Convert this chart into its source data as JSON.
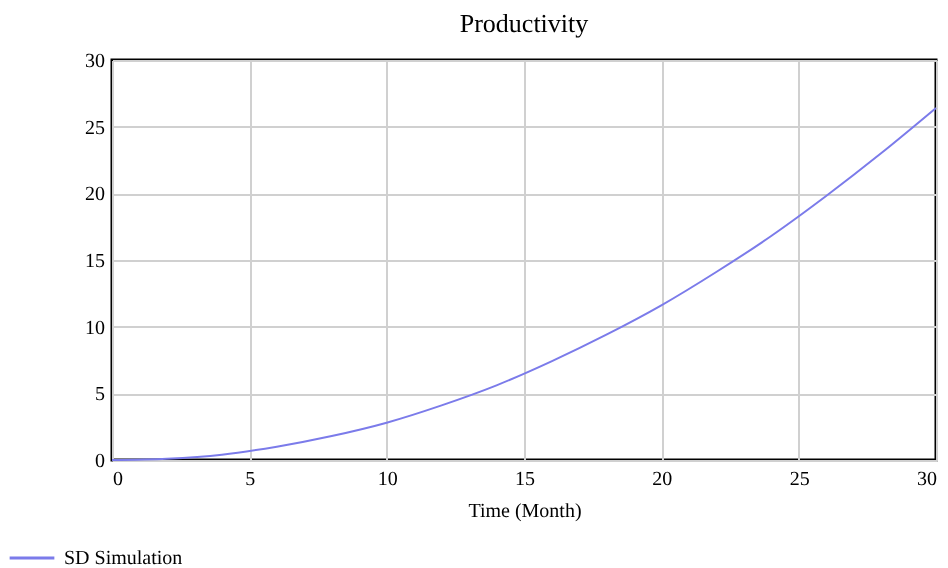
{
  "chart_data": {
    "type": "line",
    "title": "Productivity",
    "xlabel": "Time (Month)",
    "x": [
      0,
      2,
      4,
      6,
      8,
      10,
      12,
      14,
      16,
      18,
      20,
      22,
      24,
      26,
      28,
      30
    ],
    "series": [
      {
        "name": "SD Simulation",
        "color": "#7b7bea",
        "values": [
          0,
          0.1,
          0.4,
          1.0,
          1.8,
          2.8,
          4.1,
          5.6,
          7.4,
          9.4,
          11.6,
          14.1,
          16.8,
          19.8,
          23.0,
          26.4
        ]
      }
    ],
    "xlim": [
      0,
      30
    ],
    "xticks": [
      0,
      5,
      10,
      15,
      20,
      25,
      30
    ],
    "ylim": [
      0,
      30
    ],
    "yticks": [
      0,
      5,
      10,
      15,
      20,
      25,
      30
    ],
    "grid": true,
    "legend": "bottom"
  }
}
